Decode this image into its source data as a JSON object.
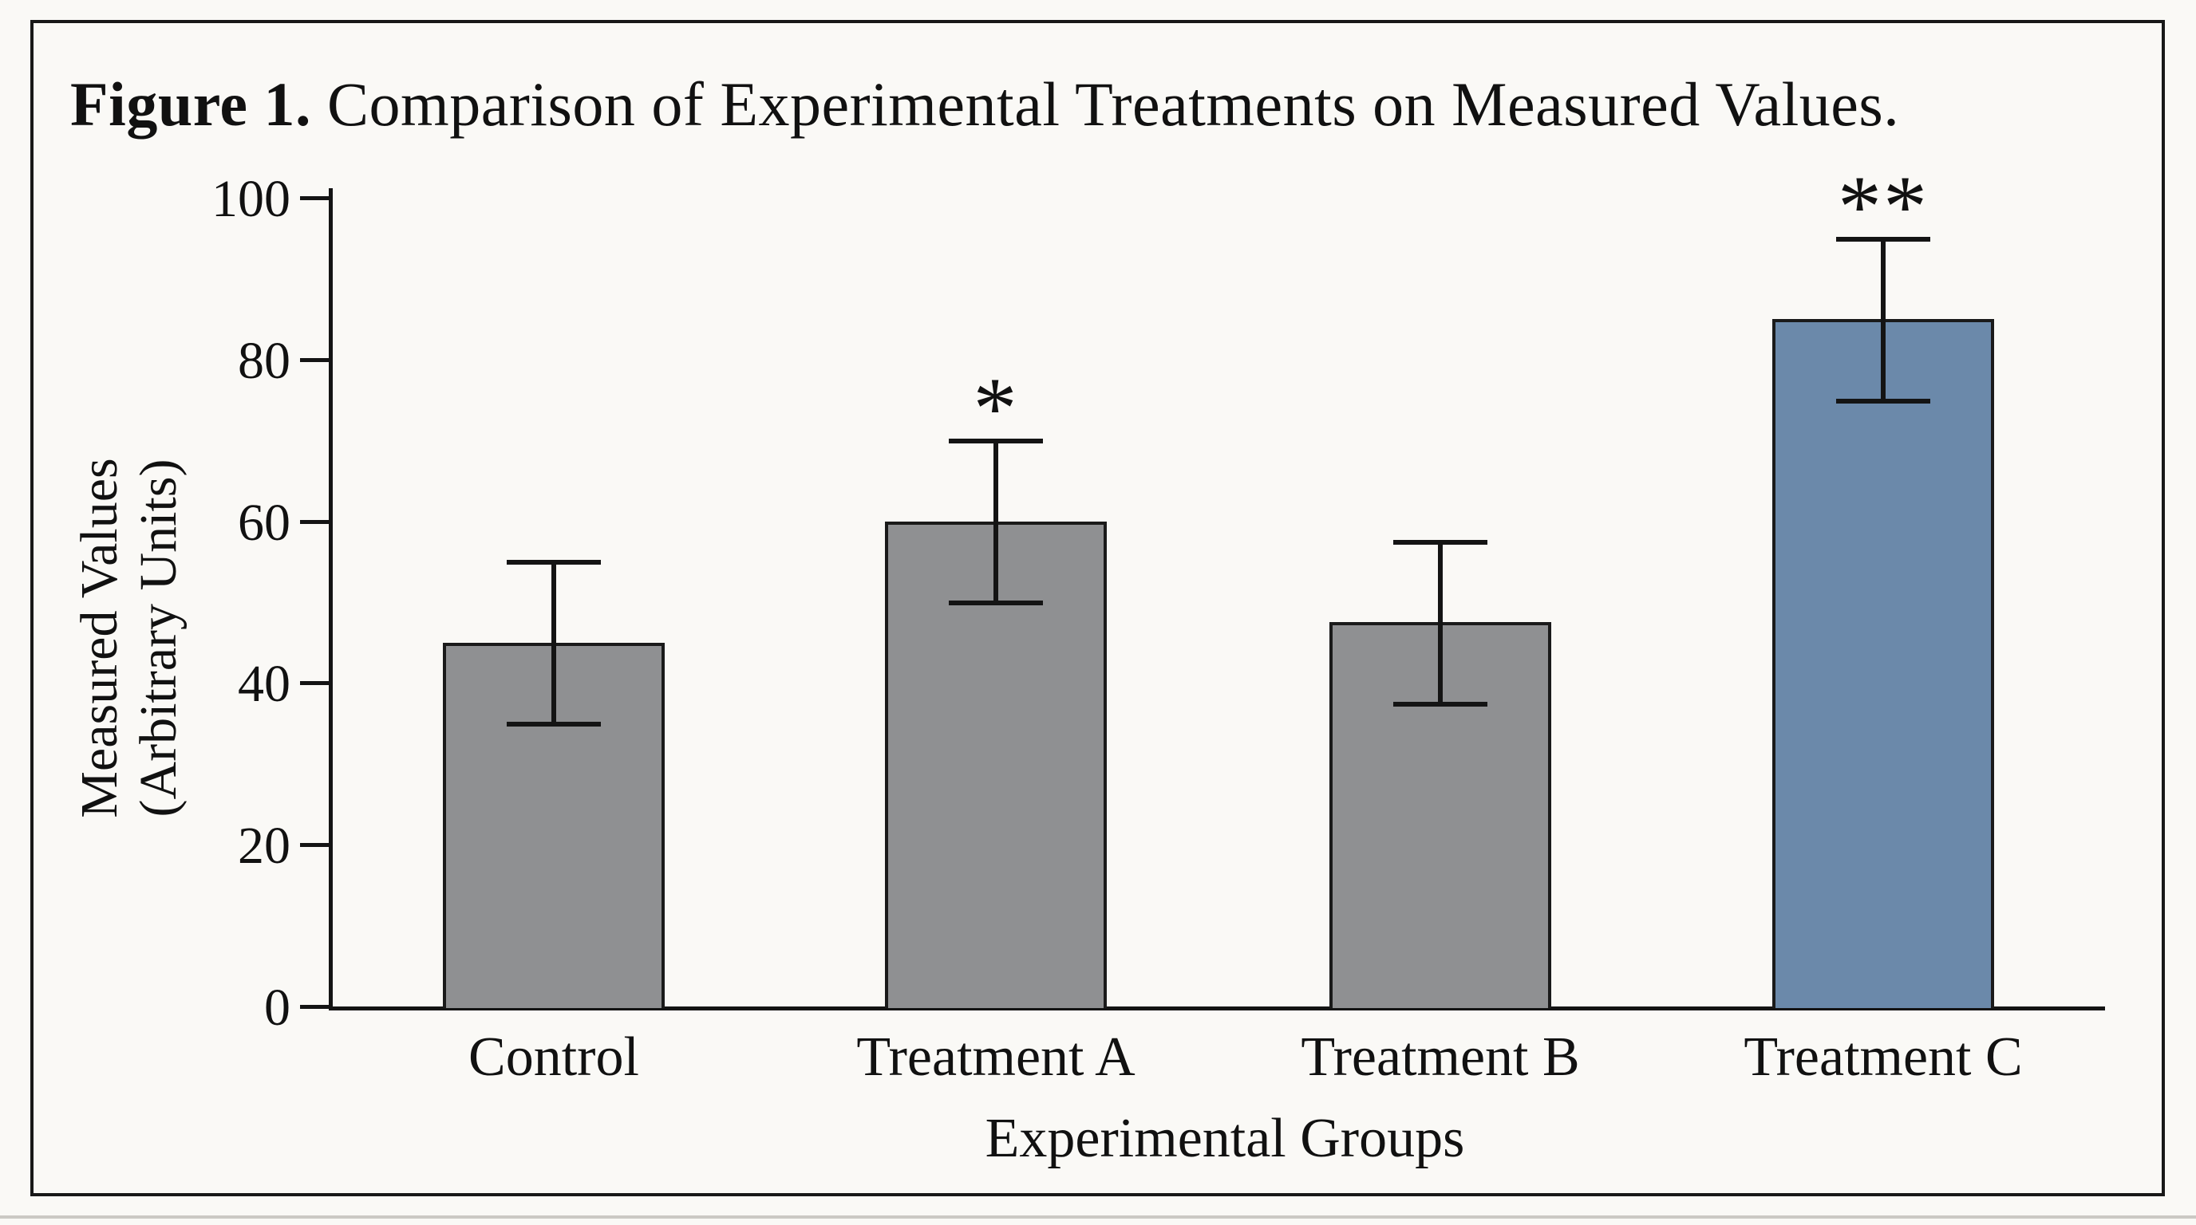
{
  "figure": {
    "title_prefix": "Figure 1.",
    "title_rest": " Comparison of Experimental Treatments on Measured Values."
  },
  "chart_data": {
    "type": "bar",
    "title": "Figure 1. Comparison of Experimental Treatments on Measured Values.",
    "categories": [
      "Control",
      "Treatment A",
      "Treatment B",
      "Treatment C"
    ],
    "values": [
      45,
      60,
      47.5,
      85
    ],
    "error_bars": [
      10,
      10,
      10,
      10
    ],
    "error_low": [
      35,
      50,
      37.5,
      75
    ],
    "error_high": [
      55,
      70,
      57.5,
      95
    ],
    "significance": [
      "",
      "*",
      "",
      "**"
    ],
    "bar_colors": [
      "#8f9092",
      "#8f9092",
      "#8f9092",
      "#6b89aa"
    ],
    "xlabel": "Experimental Groups",
    "ylabel": "Measured Values (Arbitrary Units)",
    "ylabel_line1": "Measured Values",
    "ylabel_line2": "(Arbitrary Units)",
    "ylim": [
      0,
      100
    ],
    "yticks": [
      0,
      20,
      40,
      60,
      80,
      100
    ],
    "grid": false,
    "legend": "none"
  },
  "colors": {
    "background": "#faf9f6",
    "frame_border": "#181818",
    "axis": "#141414",
    "bar_gray": "#8f9092",
    "bar_blue": "#6b89aa",
    "text": "#111111"
  }
}
